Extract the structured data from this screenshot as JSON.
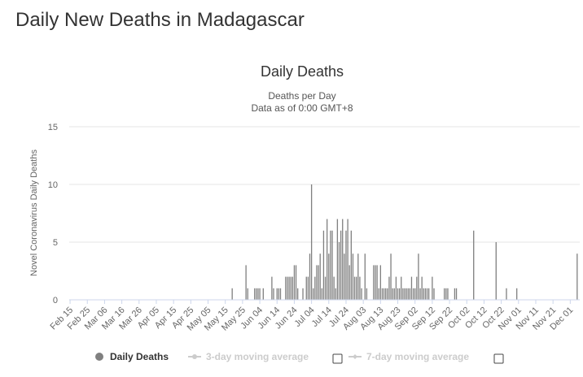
{
  "page": {
    "heading": "Daily New Deaths in Madagascar"
  },
  "chart_data": {
    "type": "bar",
    "title": "Daily Deaths",
    "subtitle": "Deaths per Day",
    "subtitle2": "Data as of 0:00 GMT+8",
    "ylabel": "Novel Coronavirus Daily Deaths",
    "xlabel": "",
    "ylim": [
      0,
      15
    ],
    "yticks": [
      0,
      5,
      10,
      15
    ],
    "grid": true,
    "x_start": "2020-02-15",
    "x_end": "2020-12-06",
    "xticks": [
      "Feb 15",
      "Feb 25",
      "Mar 06",
      "Mar 16",
      "Mar 26",
      "Apr 05",
      "Apr 15",
      "Apr 25",
      "May 05",
      "May 15",
      "May 25",
      "Jun 04",
      "Jun 14",
      "Jun 24",
      "Jul 04",
      "Jul 14",
      "Jul 24",
      "Aug 03",
      "Aug 13",
      "Aug 23",
      "Sep 02",
      "Sep 12",
      "Sep 22",
      "Oct 02",
      "Oct 12",
      "Oct 22",
      "Nov 01",
      "Nov 11",
      "Nov 21",
      "Dec 01"
    ],
    "series": [
      {
        "name": "Daily Deaths",
        "color": "#808080",
        "points": [
          [
            "2020-05-19",
            1
          ],
          [
            "2020-05-27",
            3
          ],
          [
            "2020-05-28",
            1
          ],
          [
            "2020-06-01",
            1
          ],
          [
            "2020-06-02",
            1
          ],
          [
            "2020-06-03",
            1
          ],
          [
            "2020-06-04",
            1
          ],
          [
            "2020-06-06",
            1
          ],
          [
            "2020-06-11",
            2
          ],
          [
            "2020-06-12",
            1
          ],
          [
            "2020-06-14",
            1
          ],
          [
            "2020-06-15",
            1
          ],
          [
            "2020-06-16",
            1
          ],
          [
            "2020-06-19",
            2
          ],
          [
            "2020-06-20",
            2
          ],
          [
            "2020-06-21",
            2
          ],
          [
            "2020-06-22",
            2
          ],
          [
            "2020-06-23",
            2
          ],
          [
            "2020-06-24",
            3
          ],
          [
            "2020-06-25",
            3
          ],
          [
            "2020-06-26",
            1
          ],
          [
            "2020-06-29",
            1
          ],
          [
            "2020-07-01",
            2
          ],
          [
            "2020-07-02",
            2
          ],
          [
            "2020-07-03",
            4
          ],
          [
            "2020-07-04",
            10
          ],
          [
            "2020-07-05",
            1
          ],
          [
            "2020-07-06",
            2
          ],
          [
            "2020-07-07",
            3
          ],
          [
            "2020-07-08",
            3
          ],
          [
            "2020-07-09",
            4
          ],
          [
            "2020-07-10",
            1
          ],
          [
            "2020-07-11",
            6
          ],
          [
            "2020-07-12",
            2
          ],
          [
            "2020-07-13",
            7
          ],
          [
            "2020-07-14",
            4
          ],
          [
            "2020-07-15",
            6
          ],
          [
            "2020-07-16",
            6
          ],
          [
            "2020-07-17",
            2
          ],
          [
            "2020-07-18",
            1
          ],
          [
            "2020-07-19",
            7
          ],
          [
            "2020-07-20",
            5
          ],
          [
            "2020-07-21",
            6
          ],
          [
            "2020-07-22",
            7
          ],
          [
            "2020-07-23",
            4
          ],
          [
            "2020-07-24",
            6
          ],
          [
            "2020-07-25",
            7
          ],
          [
            "2020-07-26",
            3
          ],
          [
            "2020-07-27",
            6
          ],
          [
            "2020-07-28",
            4
          ],
          [
            "2020-07-29",
            2
          ],
          [
            "2020-07-30",
            2
          ],
          [
            "2020-07-31",
            4
          ],
          [
            "2020-08-01",
            2
          ],
          [
            "2020-08-02",
            1
          ],
          [
            "2020-08-04",
            4
          ],
          [
            "2020-08-05",
            1
          ],
          [
            "2020-08-09",
            3
          ],
          [
            "2020-08-10",
            3
          ],
          [
            "2020-08-11",
            3
          ],
          [
            "2020-08-12",
            1
          ],
          [
            "2020-08-13",
            3
          ],
          [
            "2020-08-14",
            1
          ],
          [
            "2020-08-15",
            1
          ],
          [
            "2020-08-16",
            1
          ],
          [
            "2020-08-17",
            1
          ],
          [
            "2020-08-18",
            2
          ],
          [
            "2020-08-19",
            4
          ],
          [
            "2020-08-20",
            1
          ],
          [
            "2020-08-21",
            1
          ],
          [
            "2020-08-22",
            2
          ],
          [
            "2020-08-23",
            1
          ],
          [
            "2020-08-24",
            1
          ],
          [
            "2020-08-25",
            2
          ],
          [
            "2020-08-26",
            1
          ],
          [
            "2020-08-27",
            1
          ],
          [
            "2020-08-28",
            1
          ],
          [
            "2020-08-29",
            1
          ],
          [
            "2020-08-30",
            1
          ],
          [
            "2020-08-31",
            2
          ],
          [
            "2020-09-01",
            1
          ],
          [
            "2020-09-02",
            1
          ],
          [
            "2020-09-03",
            2
          ],
          [
            "2020-09-04",
            4
          ],
          [
            "2020-09-05",
            1
          ],
          [
            "2020-09-06",
            2
          ],
          [
            "2020-09-07",
            1
          ],
          [
            "2020-09-08",
            1
          ],
          [
            "2020-09-09",
            1
          ],
          [
            "2020-09-10",
            1
          ],
          [
            "2020-09-12",
            2
          ],
          [
            "2020-09-13",
            1
          ],
          [
            "2020-09-19",
            1
          ],
          [
            "2020-09-20",
            1
          ],
          [
            "2020-09-21",
            1
          ],
          [
            "2020-09-25",
            1
          ],
          [
            "2020-09-26",
            1
          ],
          [
            "2020-10-06",
            6
          ],
          [
            "2020-10-19",
            5
          ],
          [
            "2020-10-25",
            1
          ],
          [
            "2020-10-31",
            1
          ],
          [
            "2020-12-05",
            4
          ]
        ]
      }
    ],
    "legend": {
      "placement": "bottom",
      "items": [
        {
          "label": "Daily Deaths",
          "active": true
        },
        {
          "label": "3-day moving average",
          "active": false
        },
        {
          "label": "7-day moving average",
          "active": false
        }
      ]
    }
  }
}
